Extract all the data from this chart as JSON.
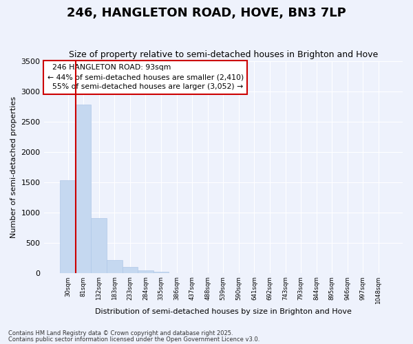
{
  "title": "246, HANGLETON ROAD, HOVE, BN3 7LP",
  "subtitle": "Size of property relative to semi-detached houses in Brighton and Hove",
  "xlabel": "Distribution of semi-detached houses by size in Brighton and Hove",
  "ylabel": "Number of semi-detached properties",
  "categories": [
    "30sqm",
    "81sqm",
    "132sqm",
    "183sqm",
    "233sqm",
    "284sqm",
    "335sqm",
    "386sqm",
    "437sqm",
    "488sqm",
    "539sqm",
    "590sqm",
    "641sqm",
    "692sqm",
    "743sqm",
    "793sqm",
    "844sqm",
    "895sqm",
    "946sqm",
    "997sqm",
    "1048sqm"
  ],
  "values": [
    1530,
    2775,
    900,
    215,
    95,
    40,
    15,
    0,
    0,
    0,
    0,
    0,
    0,
    0,
    0,
    0,
    0,
    0,
    0,
    0,
    0
  ],
  "bar_color": "#c5d8f0",
  "bar_edge_color": "#b0c8e8",
  "property_line_bin": 1,
  "property_label": "246 HANGLETON ROAD: 93sqm",
  "pct_smaller": 44,
  "count_smaller": 2410,
  "pct_larger": 55,
  "count_larger": 3052,
  "line_color": "#cc0000",
  "box_edge_color": "#cc0000",
  "ylim": [
    0,
    3500
  ],
  "yticks": [
    0,
    500,
    1000,
    1500,
    2000,
    2500,
    3000,
    3500
  ],
  "bg_color": "#eef2fc",
  "grid_color": "#ffffff",
  "title_fontsize": 13,
  "subtitle_fontsize": 9,
  "footer1": "Contains HM Land Registry data © Crown copyright and database right 2025.",
  "footer2": "Contains public sector information licensed under the Open Government Licence v3.0."
}
